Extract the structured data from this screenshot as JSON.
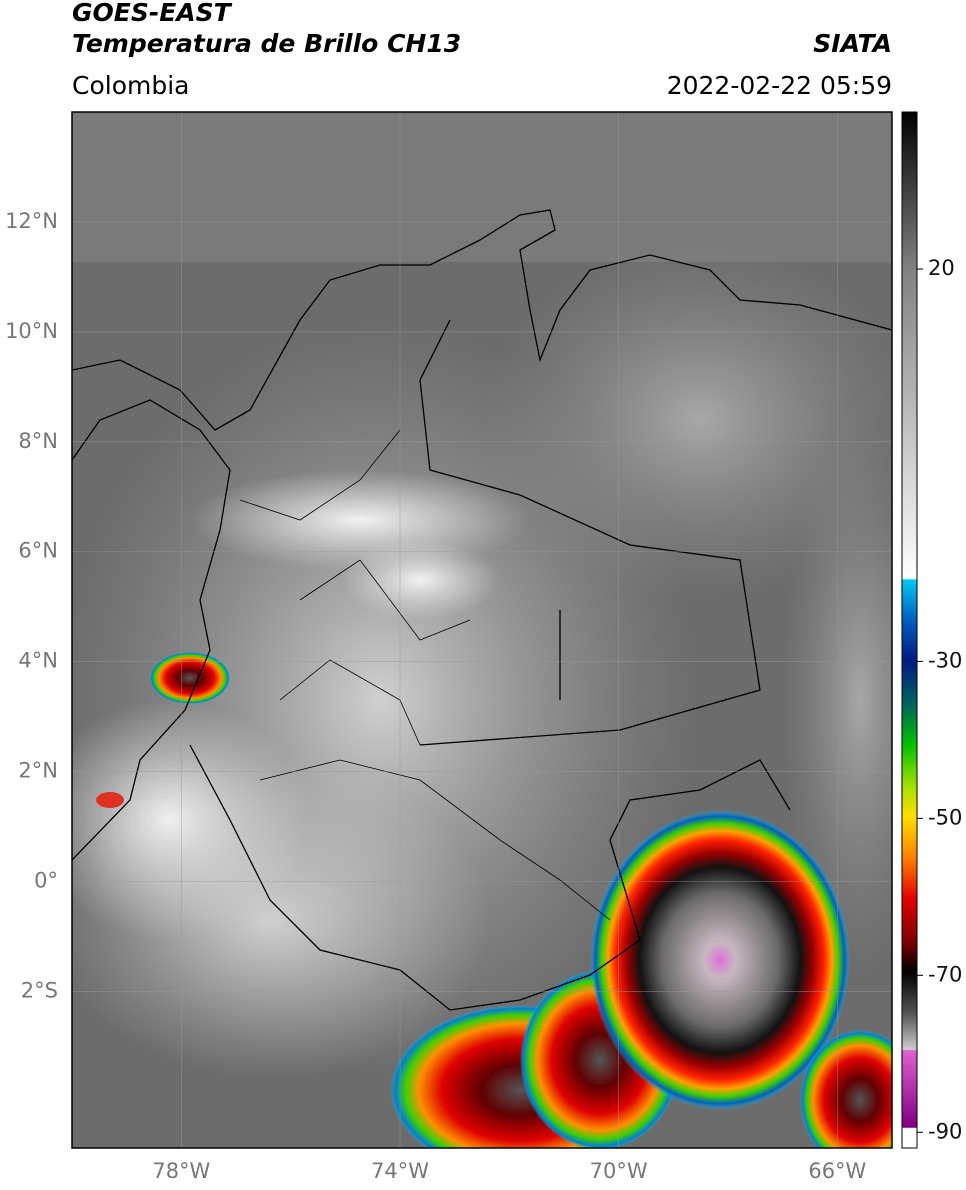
{
  "header": {
    "satellite": "GOES-EAST",
    "product": "Temperatura de Brillo CH13",
    "source": "SIATA",
    "region": "Colombia",
    "datetime": "2022-02-22 05:59"
  },
  "map": {
    "lonlim": [
      -80,
      -65
    ],
    "latlim": [
      -4.85,
      14
    ],
    "grid": true,
    "lon_ticks": [
      {
        "value": -78,
        "label": "78°W"
      },
      {
        "value": -74,
        "label": "74°W"
      },
      {
        "value": -70,
        "label": "70°W"
      },
      {
        "value": -66,
        "label": "66°W"
      }
    ],
    "lat_ticks": [
      {
        "value": 12,
        "label": "12°N"
      },
      {
        "value": 10,
        "label": "10°N"
      },
      {
        "value": 8,
        "label": "8°N"
      },
      {
        "value": 6,
        "label": "6°N"
      },
      {
        "value": 4,
        "label": "4°N"
      },
      {
        "value": 2,
        "label": "2°N"
      },
      {
        "value": 0,
        "label": "0°"
      },
      {
        "value": -2,
        "label": "2°S"
      }
    ]
  },
  "colorbar": {
    "lim": [
      -92,
      40
    ],
    "ticks": [
      20,
      -30,
      -50,
      -70,
      -90
    ]
  }
}
